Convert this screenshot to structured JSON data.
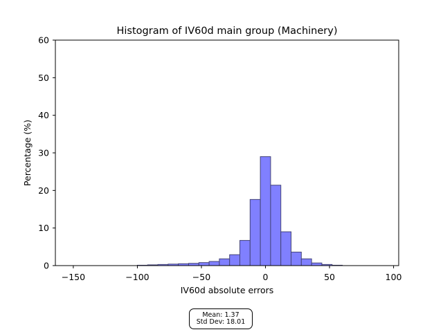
{
  "chart_data": {
    "type": "bar",
    "title": "Histogram of IV60d main group (Machinery)",
    "xlabel": "IV60d absolute errors",
    "ylabel": "Percentage (%)",
    "xlim": [
      -164,
      104
    ],
    "ylim": [
      0,
      60
    ],
    "x_ticks": [
      -150,
      -100,
      -50,
      0,
      50,
      100
    ],
    "x_tick_labels": [
      "−150",
      "−100",
      "−50",
      "0",
      "50",
      "100"
    ],
    "y_ticks": [
      0,
      10,
      20,
      30,
      40,
      50,
      60
    ],
    "y_tick_labels": [
      "0",
      "10",
      "20",
      "30",
      "40",
      "50",
      "60"
    ],
    "grid": false,
    "bar_color": "#8080ff",
    "bar_edge_color": "#444477",
    "bins": [
      {
        "x0": -156,
        "x1": -148,
        "value": 0.0
      },
      {
        "x0": -148,
        "x1": -140,
        "value": 0.0
      },
      {
        "x0": -140,
        "x1": -132,
        "value": 0.0
      },
      {
        "x0": -132,
        "x1": -124,
        "value": 0.0
      },
      {
        "x0": -124,
        "x1": -116,
        "value": 0.0
      },
      {
        "x0": -116,
        "x1": -108,
        "value": 0.0
      },
      {
        "x0": -108,
        "x1": -100,
        "value": 0.0
      },
      {
        "x0": -100,
        "x1": -92,
        "value": 0.1
      },
      {
        "x0": -92,
        "x1": -84,
        "value": 0.2
      },
      {
        "x0": -84,
        "x1": -76,
        "value": 0.3
      },
      {
        "x0": -76,
        "x1": -68,
        "value": 0.4
      },
      {
        "x0": -68,
        "x1": -60,
        "value": 0.5
      },
      {
        "x0": -60,
        "x1": -52,
        "value": 0.6
      },
      {
        "x0": -52,
        "x1": -44,
        "value": 0.8
      },
      {
        "x0": -44,
        "x1": -36,
        "value": 1.1
      },
      {
        "x0": -36,
        "x1": -28,
        "value": 1.8
      },
      {
        "x0": -28,
        "x1": -20,
        "value": 2.9
      },
      {
        "x0": -20,
        "x1": -12,
        "value": 6.7
      },
      {
        "x0": -12,
        "x1": -4,
        "value": 17.6
      },
      {
        "x0": -4,
        "x1": 4,
        "value": 29.0
      },
      {
        "x0": 4,
        "x1": 12,
        "value": 21.4
      },
      {
        "x0": 12,
        "x1": 20,
        "value": 9.0
      },
      {
        "x0": 20,
        "x1": 28,
        "value": 3.6
      },
      {
        "x0": 28,
        "x1": 36,
        "value": 1.8
      },
      {
        "x0": 36,
        "x1": 44,
        "value": 0.7
      },
      {
        "x0": 44,
        "x1": 52,
        "value": 0.3
      },
      {
        "x0": 52,
        "x1": 60,
        "value": 0.1
      },
      {
        "x0": 60,
        "x1": 68,
        "value": 0.0
      },
      {
        "x0": 68,
        "x1": 76,
        "value": 0.0
      },
      {
        "x0": 76,
        "x1": 84,
        "value": 0.0
      },
      {
        "x0": 84,
        "x1": 92,
        "value": 0.0
      }
    ],
    "annotation": {
      "mean": "Mean: 1.37",
      "std": "Std Dev: 18.01"
    }
  }
}
